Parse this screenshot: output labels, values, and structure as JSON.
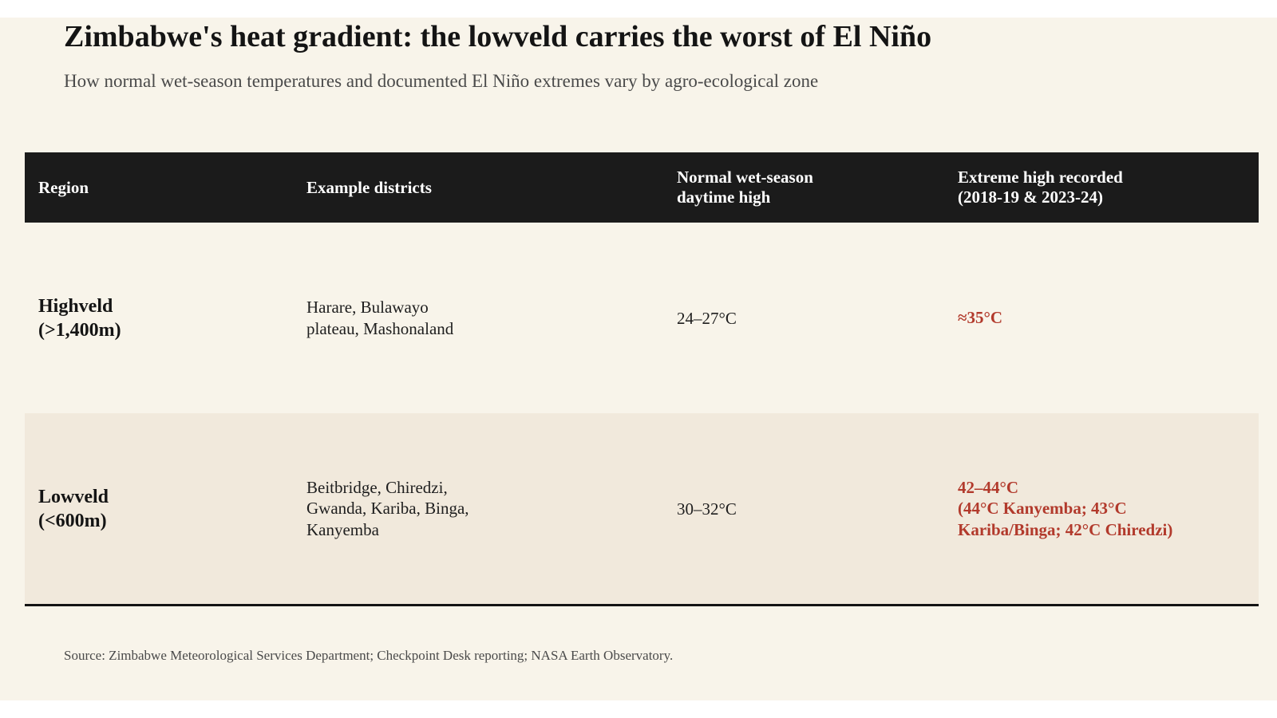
{
  "title": "Zimbabwe's heat gradient: the lowveld carries the worst of El Niño",
  "subtitle": "How normal wet-season temperatures and documented El Niño extremes vary by agro-ecological zone",
  "table": {
    "headers": [
      "Region",
      "Example districts",
      "Normal wet-season\ndaytime high",
      "Extreme high recorded\n(2018-19 & 2023-24)"
    ],
    "rows": [
      {
        "region": "Highveld\n(>1,400m)",
        "districts": "Harare, Bulawayo\nplateau, Mashonaland",
        "normal_high": "24–27°C",
        "extreme_high": "≈35°C"
      },
      {
        "region": "Lowveld\n(<600m)",
        "districts": "Beitbridge, Chiredzi,\nGwanda, Kariba, Binga,\nKanyemba",
        "normal_high": "30–32°C",
        "extreme_high": "42–44°C\n(44°C Kanyemba; 43°C\nKariba/Binga; 42°C Chiredzi)"
      }
    ]
  },
  "source": "Source: Zimbabwe Meteorological Services Department; Checkpoint Desk reporting; NASA Earth Observatory.",
  "colors": {
    "background": "#f8f4ea",
    "header_bg": "#1b1b1b",
    "alt_row_bg": "#f1e9dc",
    "extreme_text": "#b23a2c"
  },
  "chart_data": {
    "type": "table",
    "title": "Zimbabwe's heat gradient: the lowveld carries the worst of El Niño",
    "subtitle": "How normal wet-season temperatures and documented El Niño extremes vary by agro-ecological zone",
    "columns": [
      "Region",
      "Example districts",
      "Normal wet-season daytime high",
      "Extreme high recorded (2018-19 & 2023-24)"
    ],
    "rows": [
      [
        "Highveld (>1,400m)",
        "Harare, Bulawayo plateau, Mashonaland",
        "24–27°C",
        "≈35°C"
      ],
      [
        "Lowveld (<600m)",
        "Beitbridge, Chiredzi, Gwanda, Kariba, Binga, Kanyemba",
        "30–32°C",
        "42–44°C (44°C Kanyemba; 43°C Kariba/Binga; 42°C Chiredzi)"
      ]
    ]
  }
}
